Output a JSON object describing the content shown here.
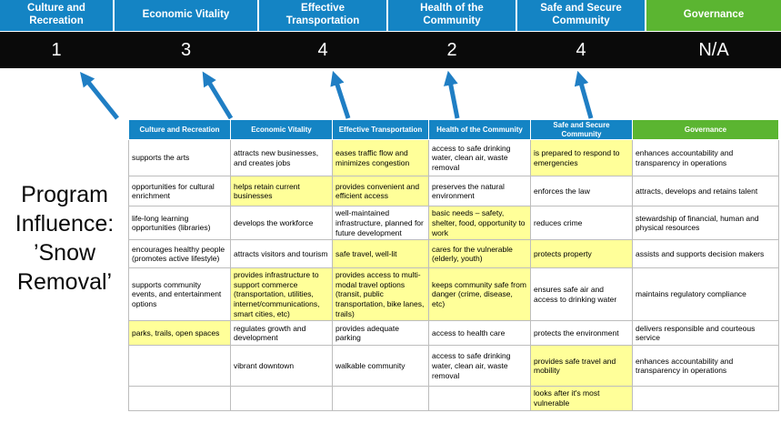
{
  "program_label": "Program Influence: ’Snow Removal’",
  "colors": {
    "blue": "#1484C4",
    "green": "#5BB531",
    "highlight": "#FFFF99",
    "band_bg": "#0A0A0A",
    "band_text": "#FFFFFF",
    "arrow": "#1F7EC4"
  },
  "scorecard": {
    "columns": [
      {
        "label": "Culture and Recreation",
        "score": "1",
        "color": "blue"
      },
      {
        "label": "Economic Vitality",
        "score": "3",
        "color": "blue"
      },
      {
        "label": "Effective Transportation",
        "score": "4",
        "color": "blue"
      },
      {
        "label": "Health of the Community",
        "score": "2",
        "color": "blue"
      },
      {
        "label": "Safe and Secure Community",
        "score": "4",
        "color": "blue"
      },
      {
        "label": "Governance",
        "score": "N/A",
        "color": "green"
      }
    ]
  },
  "matrix": {
    "headers": [
      {
        "label": "Culture and Recreation",
        "color": "blue"
      },
      {
        "label": "Economic Vitality",
        "color": "blue"
      },
      {
        "label": "Effective Transportation",
        "color": "blue"
      },
      {
        "label": "Health of the Community",
        "color": "blue"
      },
      {
        "label": "Safe and Secure Community",
        "color": "blue"
      },
      {
        "label": "Governance",
        "color": "green"
      }
    ],
    "rows": [
      {
        "cells": [
          {
            "text": "supports the arts",
            "highlight": false
          },
          {
            "text": "attracts new businesses, and creates jobs",
            "highlight": false
          },
          {
            "text": "eases traffic flow and minimizes congestion",
            "highlight": true
          },
          {
            "text": "access to safe drinking water, clean air, waste removal",
            "highlight": false
          },
          {
            "text": "is prepared to respond to emergencies",
            "highlight": true
          },
          {
            "text": "enhances accountability and transparency in operations",
            "highlight": false
          }
        ]
      },
      {
        "cells": [
          {
            "text": "opportunities for cultural enrichment",
            "highlight": false
          },
          {
            "text": "helps retain current businesses",
            "highlight": true
          },
          {
            "text": "provides convenient and efficient access",
            "highlight": true
          },
          {
            "text": "preserves the natural environment",
            "highlight": false
          },
          {
            "text": "enforces the law",
            "highlight": false
          },
          {
            "text": "attracts, develops and retains talent",
            "highlight": false
          }
        ]
      },
      {
        "cells": [
          {
            "text": "life-long learning opportunities (libraries)",
            "highlight": false
          },
          {
            "text": "develops the workforce",
            "highlight": false
          },
          {
            "text": "well-maintained infrastructure, planned for future development",
            "highlight": false
          },
          {
            "text": "basic needs – safety, shelter, food, opportunity to work",
            "highlight": true
          },
          {
            "text": "reduces crime",
            "highlight": false
          },
          {
            "text": "stewardship of financial, human and physical resources",
            "highlight": false
          }
        ]
      },
      {
        "cells": [
          {
            "text": "encourages healthy people (promotes active lifestyle)",
            "highlight": false
          },
          {
            "text": "attracts visitors and tourism",
            "highlight": false
          },
          {
            "text": "safe travel, well-lit",
            "highlight": true
          },
          {
            "text": "cares for the vulnerable (elderly, youth)",
            "highlight": true
          },
          {
            "text": "protects property",
            "highlight": true
          },
          {
            "text": "assists and supports decision makers",
            "highlight": false
          }
        ]
      },
      {
        "cells": [
          {
            "text": "supports community events, and entertainment options",
            "highlight": false
          },
          {
            "text": "provides infrastructure to support commerce (transportation, utilities, internet/communications, smart cities, etc)",
            "highlight": true
          },
          {
            "text": "provides access to multi-modal travel options (transit, public transportation, bike lanes, trails)",
            "highlight": true
          },
          {
            "text": "keeps community safe from danger (crime, disease, etc)",
            "highlight": true
          },
          {
            "text": "ensures safe air and access to drinking water",
            "highlight": false
          },
          {
            "text": "maintains regulatory compliance",
            "highlight": false
          }
        ]
      },
      {
        "cells": [
          {
            "text": "parks, trails, open spaces",
            "highlight": true
          },
          {
            "text": "regulates growth and development",
            "highlight": false
          },
          {
            "text": "provides adequate parking",
            "highlight": false
          },
          {
            "text": "access to health care",
            "highlight": false
          },
          {
            "text": "protects the environment",
            "highlight": false
          },
          {
            "text": "delivers responsible and courteous service",
            "highlight": false
          }
        ]
      },
      {
        "cells": [
          {
            "text": "",
            "highlight": false
          },
          {
            "text": "vibrant downtown",
            "highlight": false
          },
          {
            "text": "walkable community",
            "highlight": false
          },
          {
            "text": "access to safe drinking water, clean air, waste removal",
            "highlight": false
          },
          {
            "text": "provides safe travel and mobility",
            "highlight": true
          },
          {
            "text": "enhances accountability and transparency in operations",
            "highlight": false
          }
        ]
      },
      {
        "cells": [
          {
            "text": "",
            "highlight": false
          },
          {
            "text": "",
            "highlight": false
          },
          {
            "text": "",
            "highlight": false
          },
          {
            "text": "",
            "highlight": false
          },
          {
            "text": "looks after it's most vulnerable",
            "highlight": true
          },
          {
            "text": "",
            "highlight": false
          }
        ]
      }
    ]
  }
}
